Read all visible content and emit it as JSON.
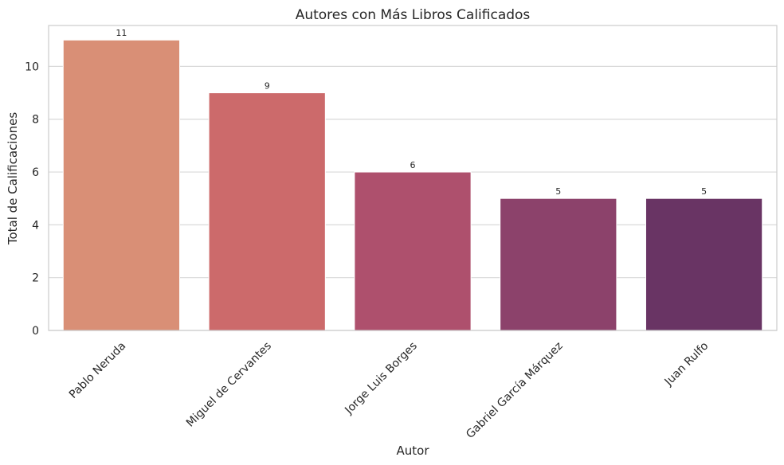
{
  "chart_data": {
    "type": "bar",
    "title": "Autores con Más Libros Calificados",
    "xlabel": "Autor",
    "ylabel": "Total de Calificaciones",
    "categories": [
      "Pablo Neruda",
      "Miguel de Cervantes",
      "Jorge Luis Borges",
      "Gabriel García Márquez",
      "Juan Rulfo"
    ],
    "values": [
      11,
      9,
      6,
      5,
      5
    ],
    "data_labels": [
      "11",
      "9",
      "6",
      "5",
      "5"
    ],
    "colors": [
      "#d98f76",
      "#cc6a6b",
      "#ae506d",
      "#8c426b",
      "#693464"
    ],
    "ylim": [
      0,
      11.55
    ],
    "yticks": [
      0,
      2,
      4,
      6,
      8,
      10
    ],
    "grid": "horizontal",
    "legend": "none"
  }
}
